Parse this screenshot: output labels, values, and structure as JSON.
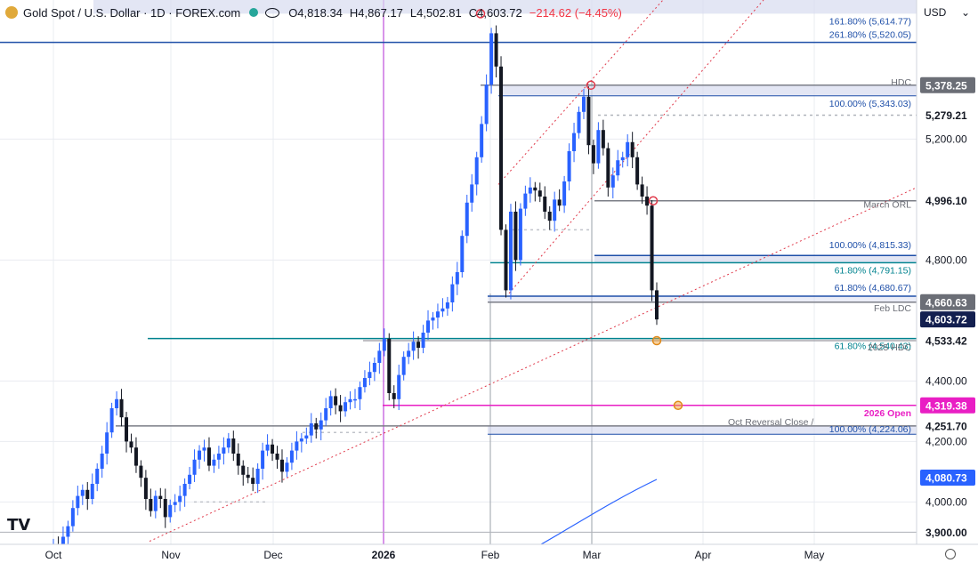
{
  "header": {
    "title": "Gold Spot / U.S. Dollar · 1D · FOREX.com",
    "open": "O4,818.34",
    "high": "H4,867.17",
    "low": "L4,502.81",
    "close": "C4,603.72",
    "change": "−214.62 (−4.45%)",
    "currency": "USD",
    "currency_caret": "⌄"
  },
  "logo_text": "TV",
  "colors": {
    "bg": "#ffffff",
    "grid": "#e9ecf1",
    "up_candle": "#2962ff",
    "down_candle": "#131722",
    "fib_blue": "#1e4fa8",
    "fib_teal": "#00838f",
    "gray_line": "#7b7e87",
    "magenta": "#e91ec4",
    "trend_red": "#e0394a",
    "ma_blue": "#2962ff",
    "zone_fill": "#d7dcf0",
    "axis_text": "#131722"
  },
  "chart_data": {
    "type": "candlestick",
    "symbol": "XAUUSD",
    "timeframe": "1D",
    "ylim": [
      3860,
      5660
    ],
    "x_ticks": [
      "Oct",
      "Nov",
      "Dec",
      "2026",
      "Feb",
      "Mar",
      "Apr",
      "May"
    ],
    "y_ticks": [
      4000.0,
      4200.0,
      4400.0,
      4800.0,
      5200.0
    ],
    "last_price": 4603.72,
    "closes": [
      3860,
      3858,
      3885,
      3920,
      3980,
      4020,
      4040,
      4010,
      4060,
      4110,
      4160,
      4230,
      4310,
      4340,
      4280,
      4200,
      4180,
      4120,
      4080,
      4010,
      3970,
      4020,
      4010,
      3950,
      3990,
      4000,
      4020,
      4060,
      4090,
      4140,
      4170,
      4180,
      4120,
      4140,
      4160,
      4180,
      4210,
      4160,
      4120,
      4090,
      4080,
      4060,
      4110,
      4170,
      4190,
      4160,
      4140,
      4100,
      4130,
      4170,
      4200,
      4210,
      4220,
      4260,
      4240,
      4270,
      4310,
      4350,
      4320,
      4300,
      4330,
      4340,
      4340,
      4380,
      4410,
      4430,
      4460,
      4500,
      4540,
      4360,
      4340,
      4420,
      4480,
      4500,
      4530,
      4510,
      4560,
      4600,
      4610,
      4630,
      4640,
      4660,
      4720,
      4760,
      4880,
      4990,
      5050,
      5140,
      5250,
      5380,
      5550,
      5440,
      4900,
      4700,
      4960,
      4800,
      4970,
      5020,
      5040,
      5030,
      5010,
      4960,
      4930,
      5000,
      4980,
      5060,
      5160,
      5220,
      5290,
      5340,
      5180,
      5120,
      5230,
      5170,
      5040,
      5080,
      5130,
      5140,
      5190,
      5140,
      5050,
      5010,
      4980,
      4700,
      4603.72
    ],
    "annotations": [
      {
        "label": "161.80% (5,614.77)",
        "value": 5614.77
      },
      {
        "label": "261.80% (5,520.05)",
        "value": 5520.05
      },
      {
        "label": "HDC",
        "value": 5378.25
      },
      {
        "label": "100.00% (5,343.03)",
        "value": 5343.03
      },
      {
        "label": "March ORL",
        "value": 4996.1
      },
      {
        "label": "100.00% (4,815.33)",
        "value": 4815.33
      },
      {
        "label": "61.80% (4,791.15)",
        "value": 4791.15
      },
      {
        "label": "61.80% (4,680.67)",
        "value": 4680.67
      },
      {
        "label": "Feb LDC",
        "value": 4660.63
      },
      {
        "label": "61.80% (4,540.43)",
        "value": 4540.43
      },
      {
        "label": "2025 HDC",
        "value": 4533.42
      },
      {
        "label": "2026 Open",
        "value": 4319.38
      },
      {
        "label": "Oct Reversal Close /",
        "value": 4251.7
      },
      {
        "label": "100.00% (4,224.06)",
        "value": 4224.06
      }
    ],
    "price_labels": [
      {
        "text": "5,378.25",
        "value": 5378.25,
        "style": "gray"
      },
      {
        "text": "5,279.21",
        "value": 5279.21,
        "style": "plain"
      },
      {
        "text": "4,996.10",
        "value": 4996.1,
        "style": "plain"
      },
      {
        "text": "4,660.63",
        "value": 4660.63,
        "style": "gray"
      },
      {
        "text": "4,603.72",
        "value": 4603.72,
        "style": "navy"
      },
      {
        "text": "4,533.42",
        "value": 4533.42,
        "style": "plain"
      },
      {
        "text": "4,319.38",
        "value": 4319.38,
        "style": "magenta"
      },
      {
        "text": "4,251.70",
        "value": 4251.7,
        "style": "plain"
      },
      {
        "text": "4,080.73",
        "value": 4080.73,
        "style": "blue"
      },
      {
        "text": "3,900.00",
        "value": 3900.0,
        "style": "plain"
      }
    ],
    "moving_average_last": 4080.73
  }
}
